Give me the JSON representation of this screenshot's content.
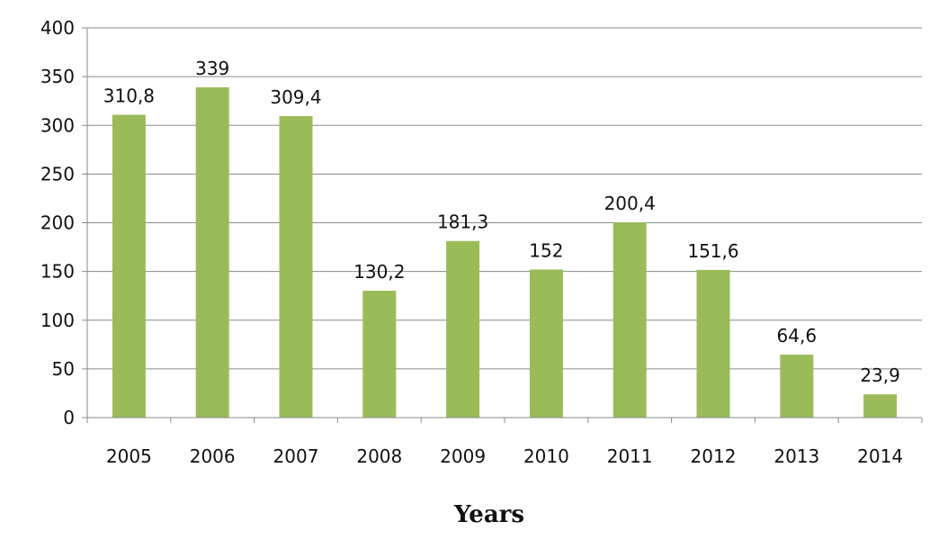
{
  "chart_data": {
    "type": "bar",
    "title": "",
    "xlabel": "Years",
    "ylabel": "",
    "categories": [
      "2005",
      "2006",
      "2007",
      "2008",
      "2009",
      "2010",
      "2011",
      "2012",
      "2013",
      "2014"
    ],
    "values": [
      310.8,
      339,
      309.4,
      130.2,
      181.3,
      152,
      200.4,
      151.6,
      64.6,
      23.9
    ],
    "value_labels": [
      "310,8",
      "339",
      "309,4",
      "130,2",
      "181,3",
      "152",
      "200,4",
      "151,6",
      "64,6",
      "23,9"
    ],
    "ylim": [
      0,
      400
    ],
    "yticks": [
      0,
      50,
      100,
      150,
      200,
      250,
      300,
      350,
      400
    ],
    "grid": true,
    "legend": "none",
    "bar_color": "#9BBB59",
    "grid_color": "#8a8a8a"
  }
}
